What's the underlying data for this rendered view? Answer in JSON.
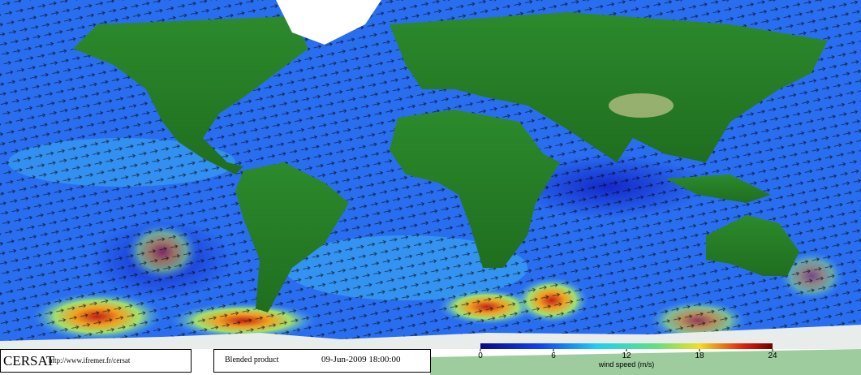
{
  "logo": "CERSAT",
  "url": "http://www.ifremer.fr/cersat",
  "product": "Blended product",
  "date": "09-Jun-2009 18:00:00",
  "colorbar": {
    "label": "wind speed (m/s)",
    "range": [
      0,
      24
    ],
    "ticks": [
      0,
      6,
      12,
      18,
      24
    ]
  }
}
